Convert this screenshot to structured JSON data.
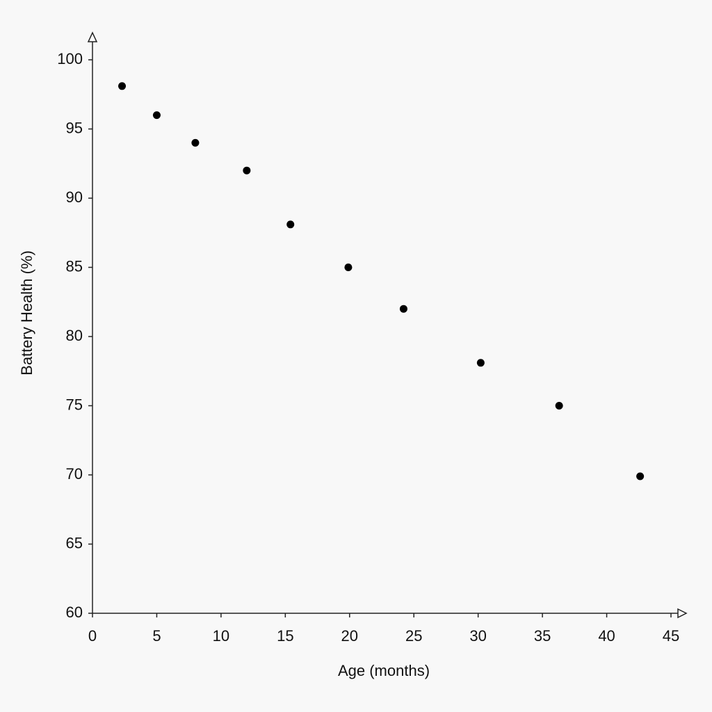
{
  "chart_data": {
    "type": "scatter",
    "x_label": "Age (months)",
    "y_label": "Battery Health (%)",
    "x": [
      2.3,
      5,
      8,
      12,
      15.4,
      19.9,
      24.2,
      30.2,
      36.3,
      42.6
    ],
    "values": [
      98.1,
      96,
      94,
      92,
      88.1,
      85,
      82,
      78.1,
      75,
      69.9
    ],
    "color": "#000000",
    "xlim": [
      0,
      45
    ],
    "xticks": [
      0,
      5,
      10,
      15,
      20,
      25,
      30,
      35,
      40,
      45
    ],
    "ylim": [
      60,
      100
    ],
    "yticks": [
      60,
      65,
      70,
      75,
      80,
      85,
      90,
      95,
      100
    ],
    "grid": false
  }
}
